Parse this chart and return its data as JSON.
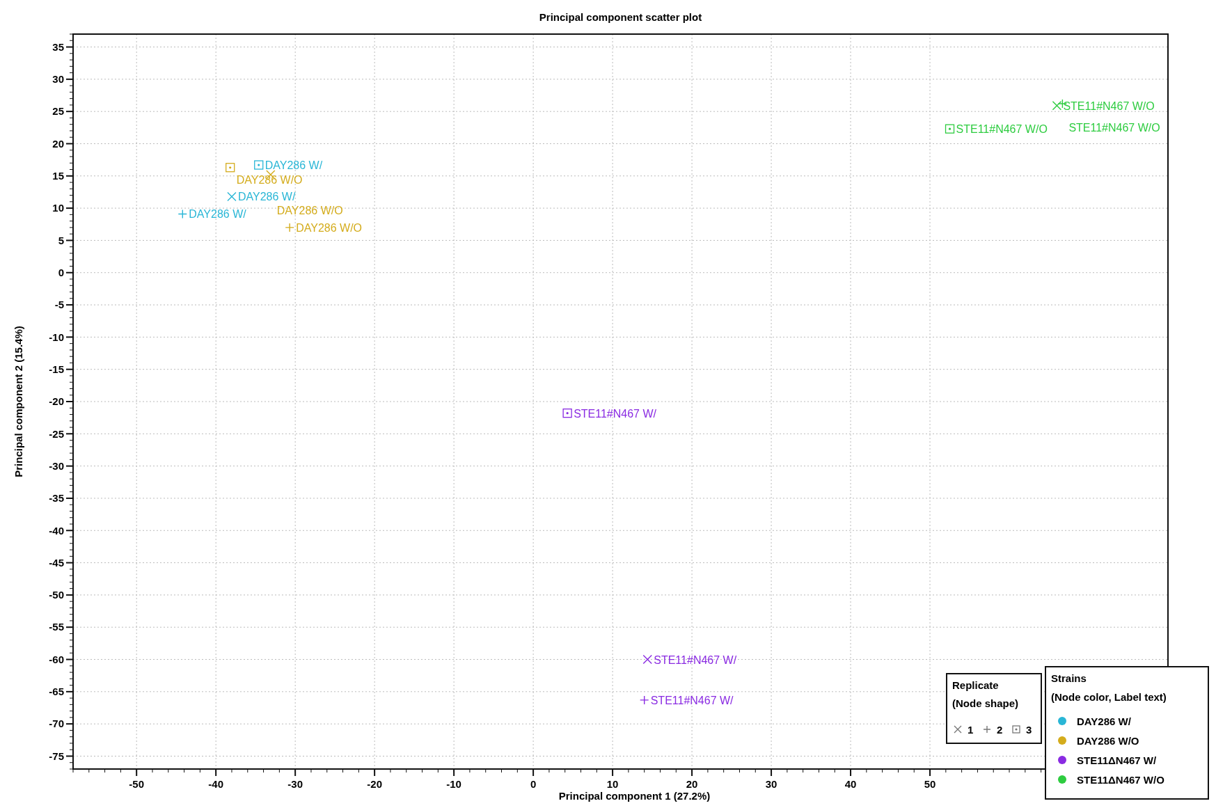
{
  "chart_data": {
    "type": "scatter",
    "title": "Principal component scatter plot",
    "xlabel": "Principal component 1 (27.2%)",
    "ylabel": "Principal component 2 (15.4%)",
    "xlim": [
      -58,
      80
    ],
    "ylim": [
      -77,
      37
    ],
    "xticks": [
      -50,
      -40,
      -30,
      -20,
      -10,
      0,
      10,
      20,
      30,
      40,
      50
    ],
    "yticks": [
      -75,
      -70,
      -65,
      -60,
      -55,
      -50,
      -45,
      -40,
      -35,
      -30,
      -25,
      -20,
      -15,
      -10,
      -5,
      0,
      5,
      10,
      15,
      20,
      25,
      30,
      35
    ],
    "grid": true,
    "legend": "bottom right",
    "legend_title": "Strains\n(Node color, Label text)",
    "annotations": [
      "Replicate\n(Node shape)",
      "1",
      "2",
      "3"
    ],
    "series": [
      {
        "name": "DAY286 W/",
        "color": "#29b6d6",
        "x": [
          -38.0,
          -44.2,
          -34.6
        ],
        "values": [
          11.8,
          9.1,
          16.7
        ],
        "marker": [
          "cross",
          "plus",
          "square"
        ],
        "value_labels": [
          "DAY286 W/",
          "DAY286 W/",
          "DAY286 W/"
        ]
      },
      {
        "name": "DAY286 W/O",
        "color": "#d4ac1c",
        "x": [
          -33.1,
          -30.7,
          -38.2
        ],
        "values": [
          15.2,
          7.0,
          16.3
        ],
        "marker": [
          "cross",
          "plus",
          "square"
        ],
        "value_labels": [
          "DAY286 W/O",
          "DAY286 W/O",
          "DAY286 W/O"
        ]
      },
      {
        "name": "STE11ΔN467 W/",
        "color": "#8a2be2",
        "x": [
          14.4,
          14.0,
          4.3
        ],
        "values": [
          -60.0,
          -66.3,
          -21.8
        ],
        "marker": [
          "cross",
          "plus",
          "square"
        ],
        "value_labels": [
          "STE11#N467 W/",
          "STE11#N467 W/",
          "STE11#N467 W/"
        ]
      },
      {
        "name": "STE11ΔN467 W/O",
        "color": "#2ecc40",
        "x": [
          66.0,
          66.7,
          52.5
        ],
        "values": [
          25.9,
          26.2,
          22.3
        ],
        "marker": [
          "cross",
          "plus",
          "square"
        ],
        "value_labels": [
          "STE11#N467 W/O",
          "STE11#N467 W/O",
          "STE11#N467 W/O"
        ]
      }
    ]
  }
}
